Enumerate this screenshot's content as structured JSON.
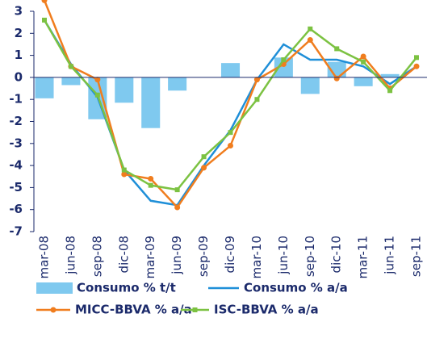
{
  "chart_data": {
    "type": "combo",
    "categories": [
      "mar-08",
      "jun-08",
      "sep-08",
      "dic-08",
      "mar-09",
      "jun-09",
      "sep-09",
      "dic-09",
      "mar-10",
      "jun-10",
      "sep-10",
      "dic-10",
      "mar-11",
      "jun-11",
      "sep-11"
    ],
    "series": [
      {
        "name": "Consumo % t/t",
        "type": "bar",
        "color": "#7fc9ef",
        "values": [
          -0.95,
          -0.35,
          -1.9,
          -1.15,
          -2.3,
          -0.6,
          0,
          0.65,
          0,
          0.9,
          -0.75,
          0.7,
          -0.4,
          0.15,
          0
        ]
      },
      {
        "name": "Consumo % a/a",
        "type": "line",
        "color": "#1f8fd8",
        "values": [
          2.6,
          0.6,
          -0.9,
          -4.2,
          -5.6,
          -5.8,
          -4.0,
          -2.4,
          -0.1,
          1.5,
          0.8,
          0.8,
          0.5,
          -0.3,
          0.5
        ]
      },
      {
        "name": "MICC-BBVA % a/a",
        "type": "line",
        "marker": "circle",
        "color": "#f07d1e",
        "values": [
          3.5,
          0.5,
          -0.1,
          -4.4,
          -4.6,
          -5.9,
          -4.1,
          -3.1,
          -0.1,
          0.6,
          1.7,
          -0.05,
          0.95,
          -0.5,
          0.5
        ]
      },
      {
        "name": "ISC-BBVA % a/a",
        "type": "line",
        "marker": "square",
        "color": "#7cc242",
        "values": [
          2.6,
          0.5,
          -0.8,
          -4.2,
          -4.9,
          -5.1,
          -3.6,
          -2.5,
          -1.0,
          0.8,
          2.2,
          1.3,
          0.7,
          -0.6,
          0.9
        ]
      }
    ],
    "ylim": [
      -7,
      3
    ],
    "yticks": [
      -7,
      -6,
      -5,
      -4,
      -3,
      -2,
      -1,
      0,
      1,
      2,
      3
    ]
  }
}
